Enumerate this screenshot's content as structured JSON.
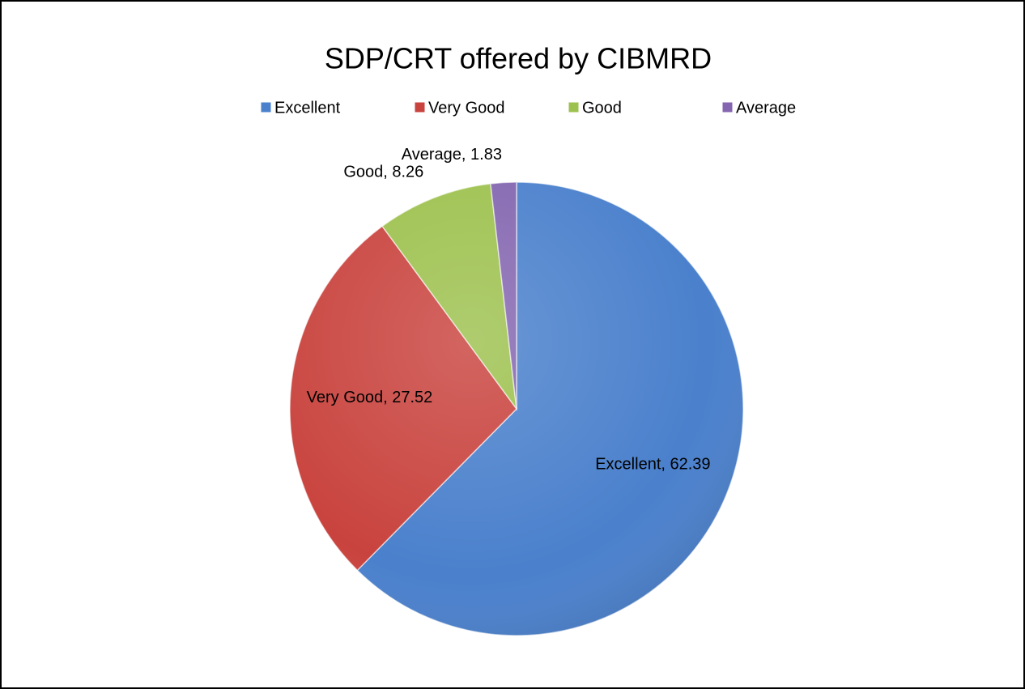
{
  "chart_data": {
    "type": "pie",
    "title": "SDP/CRT offered by CIBMRD",
    "categories": [
      "Excellent",
      "Very Good",
      "Good",
      "Average"
    ],
    "values": [
      62.39,
      27.52,
      8.26,
      1.83
    ],
    "value_labels": [
      "Excellent, 62.39",
      "Very Good, 27.52",
      "Good, 8.26",
      "Average, 1.83"
    ],
    "colors": [
      "#4a80cc",
      "#c9433e",
      "#9dc14e",
      "#8466b0"
    ],
    "legend": "top"
  }
}
